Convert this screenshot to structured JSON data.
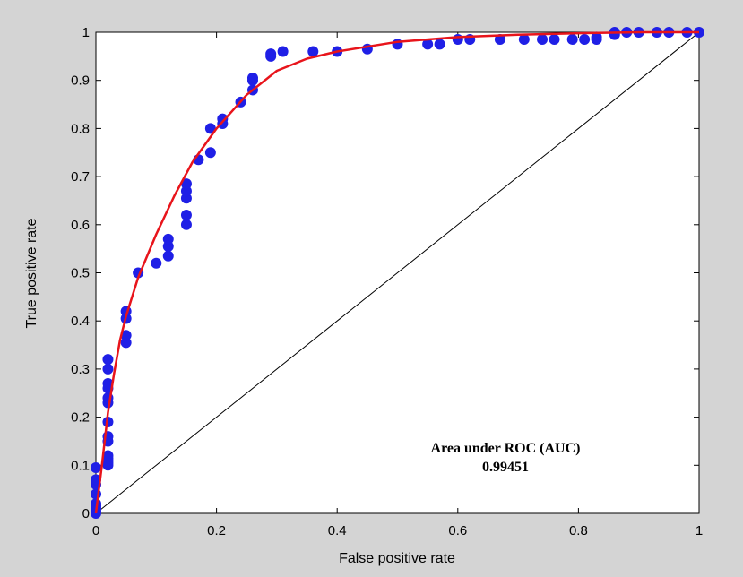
{
  "chart_data": {
    "type": "scatter",
    "title": "",
    "xlabel": "False positive rate",
    "ylabel": "True positive rate",
    "xlim": [
      0,
      1
    ],
    "ylim": [
      0,
      1
    ],
    "x_ticks": [
      "0",
      "0.2",
      "0.4",
      "0.6",
      "0.8",
      "1"
    ],
    "y_ticks": [
      "0",
      "0.1",
      "0.2",
      "0.3",
      "0.4",
      "0.5",
      "0.6",
      "0.7",
      "0.8",
      "0.9",
      "1"
    ],
    "grid": false,
    "annotation": {
      "title": "Area under ROC (AUC)",
      "value": "0.99451"
    },
    "colors": {
      "points": "#1f1fe6",
      "fit_curve": "#e8141b",
      "diagonal": "#000000"
    },
    "series": [
      {
        "style": "points",
        "x": [
          0,
          0,
          0,
          0,
          0,
          0,
          0,
          0,
          0,
          0.02,
          0.02,
          0.02,
          0.02,
          0.02,
          0.02,
          0.02,
          0.02,
          0.02,
          0.02,
          0.02,
          0.02,
          0.02,
          0.02,
          0.05,
          0.05,
          0.05,
          0.05,
          0.07,
          0.1,
          0.12,
          0.12,
          0.12,
          0.15,
          0.15,
          0.15,
          0.15,
          0.15,
          0.17,
          0.19,
          0.19,
          0.21,
          0.21,
          0.24,
          0.26,
          0.26,
          0.26,
          0.29,
          0.29,
          0.31,
          0.36,
          0.4,
          0.45,
          0.5,
          0.55,
          0.57,
          0.6,
          0.62,
          0.67,
          0.71,
          0.74,
          0.76,
          0.79,
          0.81,
          0.83,
          0.83,
          0.86,
          0.86,
          0.88,
          0.9,
          0.93,
          0.95,
          0.98,
          1.0
        ],
        "y": [
          0,
          0.01,
          0.02,
          0.04,
          0.06,
          0.07,
          0.095,
          0.015,
          0.005,
          0.11,
          0.12,
          0.15,
          0.16,
          0.19,
          0.23,
          0.24,
          0.26,
          0.27,
          0.3,
          0.32,
          0.1,
          0.105,
          0.115,
          0.355,
          0.37,
          0.405,
          0.42,
          0.5,
          0.52,
          0.535,
          0.555,
          0.57,
          0.6,
          0.62,
          0.655,
          0.67,
          0.685,
          0.735,
          0.75,
          0.8,
          0.81,
          0.82,
          0.855,
          0.88,
          0.9,
          0.905,
          0.95,
          0.955,
          0.96,
          0.96,
          0.96,
          0.965,
          0.975,
          0.975,
          0.975,
          0.985,
          0.985,
          0.985,
          0.985,
          0.985,
          0.985,
          0.985,
          0.985,
          0.985,
          0.99,
          0.995,
          1.0,
          1.0,
          1.0,
          1.0,
          1.0,
          1.0,
          1.0
        ]
      },
      {
        "style": "line",
        "x": [
          0,
          0.01,
          0.02,
          0.03,
          0.04,
          0.05,
          0.07,
          0.1,
          0.13,
          0.16,
          0.2,
          0.25,
          0.3,
          0.35,
          0.4,
          0.5,
          0.6,
          0.7,
          0.8,
          0.9,
          1.0
        ],
        "y": [
          0,
          0.1,
          0.21,
          0.29,
          0.36,
          0.41,
          0.49,
          0.58,
          0.66,
          0.73,
          0.8,
          0.87,
          0.92,
          0.945,
          0.96,
          0.98,
          0.99,
          0.995,
          0.998,
          1.0,
          1.0
        ]
      },
      {
        "style": "diagonal",
        "x": [
          0,
          1
        ],
        "y": [
          0,
          1
        ]
      }
    ]
  }
}
